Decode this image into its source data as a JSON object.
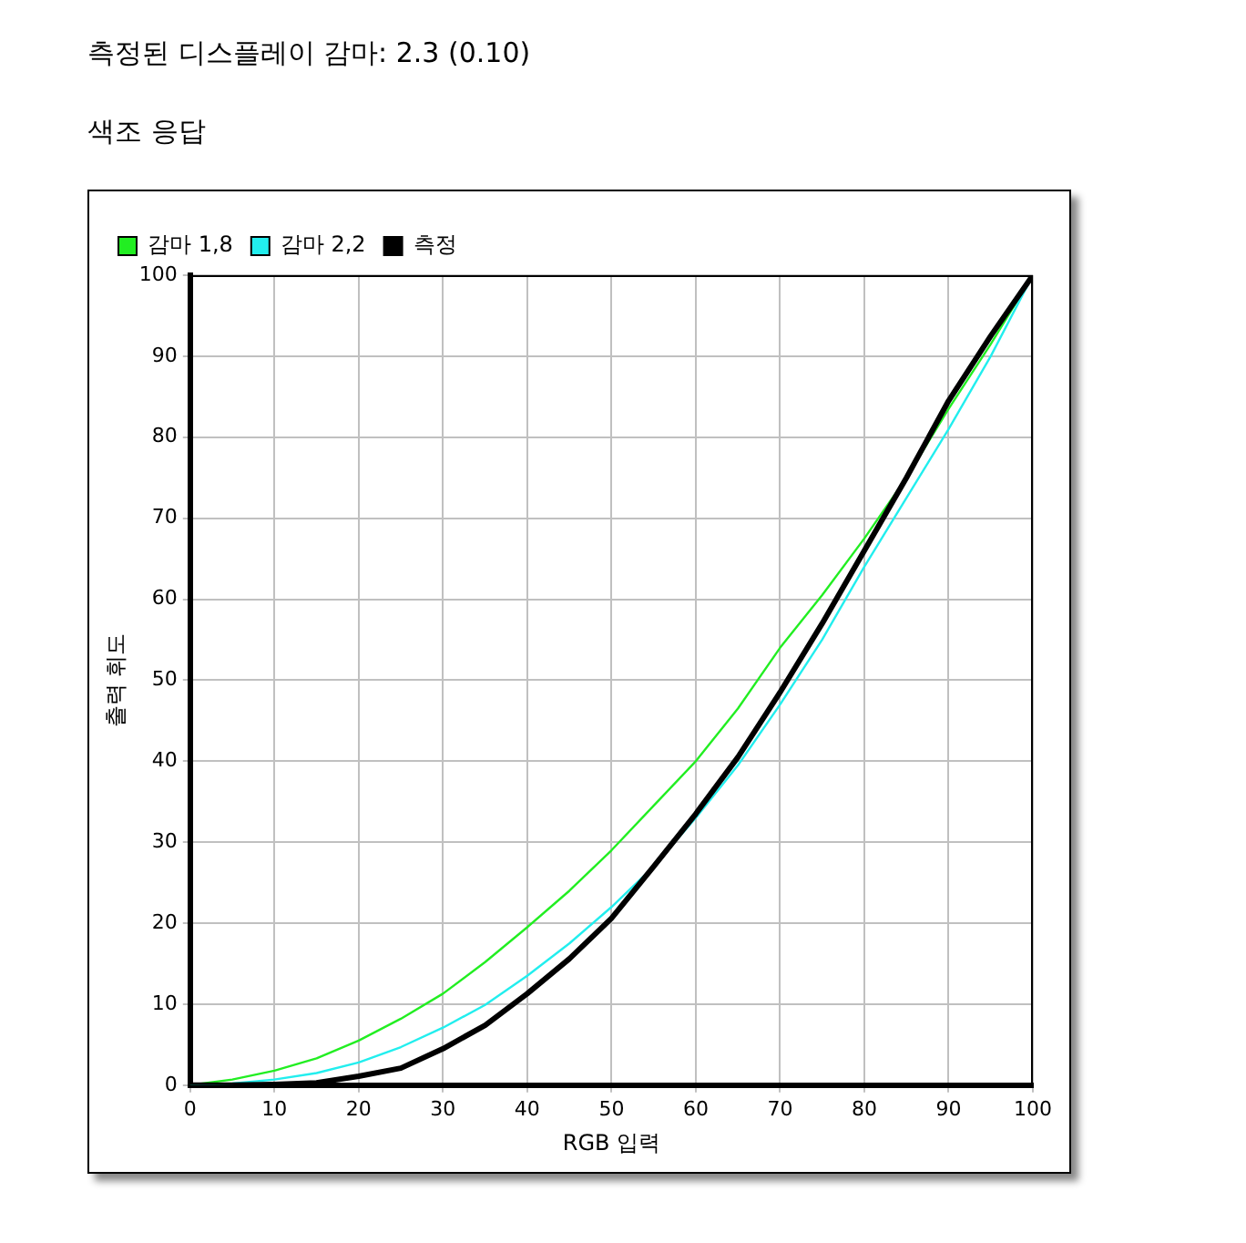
{
  "chart_data": {
    "type": "line",
    "title": "측정된 디스플레이 감마: 2.3 (0.10)",
    "subtitle": "색조 응답",
    "xlabel": "RGB 입력",
    "ylabel": "출력 휘도",
    "x": [
      0,
      5,
      10,
      15,
      20,
      25,
      30,
      35,
      40,
      45,
      50,
      55,
      60,
      65,
      70,
      75,
      80,
      85,
      90,
      95,
      100
    ],
    "series": [
      {
        "name": "감마 1,8",
        "color": "#22ee22",
        "values": [
          0,
          0.7,
          1.8,
          3.3,
          5.5,
          8.2,
          11.3,
          15.2,
          19.5,
          24,
          29,
          34.5,
          40,
          46.5,
          54,
          60.5,
          67.5,
          75,
          83.5,
          91.5,
          100
        ]
      },
      {
        "name": "감마 2,2",
        "color": "#22eeee",
        "values": [
          0,
          0.2,
          0.7,
          1.5,
          2.8,
          4.7,
          7.1,
          9.9,
          13.5,
          17.5,
          22,
          27,
          33,
          39.5,
          47,
          55,
          64,
          72.5,
          81,
          90,
          100
        ]
      },
      {
        "name": "측정",
        "color": "#000000",
        "values": [
          0,
          0,
          0.1,
          0.3,
          1.1,
          2.1,
          4.5,
          7.4,
          11.3,
          15.6,
          20.6,
          27,
          33.5,
          40.5,
          48.5,
          57,
          66,
          75,
          84.5,
          92.5,
          100
        ]
      }
    ],
    "xlim": [
      0,
      100
    ],
    "xticks": [
      0,
      10,
      20,
      30,
      40,
      50,
      60,
      70,
      80,
      90,
      100
    ],
    "ylim": [
      0,
      100
    ],
    "yticks": [
      0,
      10,
      20,
      30,
      40,
      50,
      60,
      70,
      80,
      90,
      100
    ],
    "grid": true,
    "legend": "top left",
    "marker": "none",
    "line_style": "solid"
  }
}
